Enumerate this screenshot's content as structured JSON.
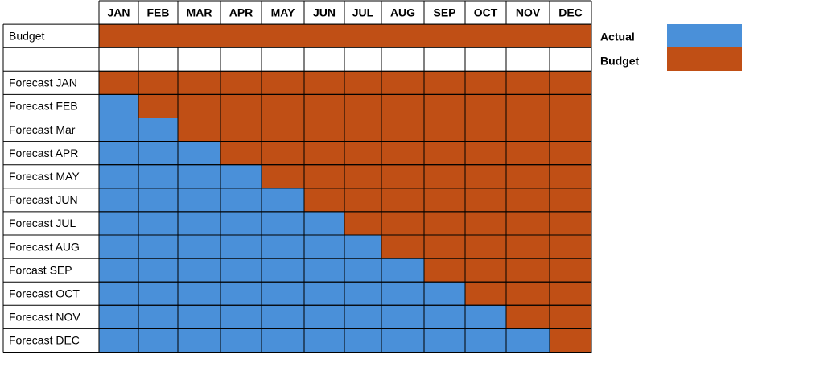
{
  "months": [
    "JAN",
    "FEB",
    "MAR",
    "APR",
    "MAY",
    "JUN",
    "JUL",
    "AUG",
    "SEP",
    "OCT",
    "NOV",
    "DEC"
  ],
  "budget_row": "Budget",
  "forecast_rows": [
    "Forecast JAN",
    "Forecast FEB",
    "Forecast Mar",
    "Forecast APR",
    "Forecast MAY",
    "Forecast JUN",
    "Forecast JUL",
    "Forecast AUG",
    "Forcast SEP",
    "Forecast OCT",
    "Forecast NOV",
    "Forecast DEC"
  ],
  "legend": [
    {
      "label": "Actual",
      "color": "#4a90d9"
    },
    {
      "label": "Budget",
      "color": "#c04f15"
    }
  ]
}
